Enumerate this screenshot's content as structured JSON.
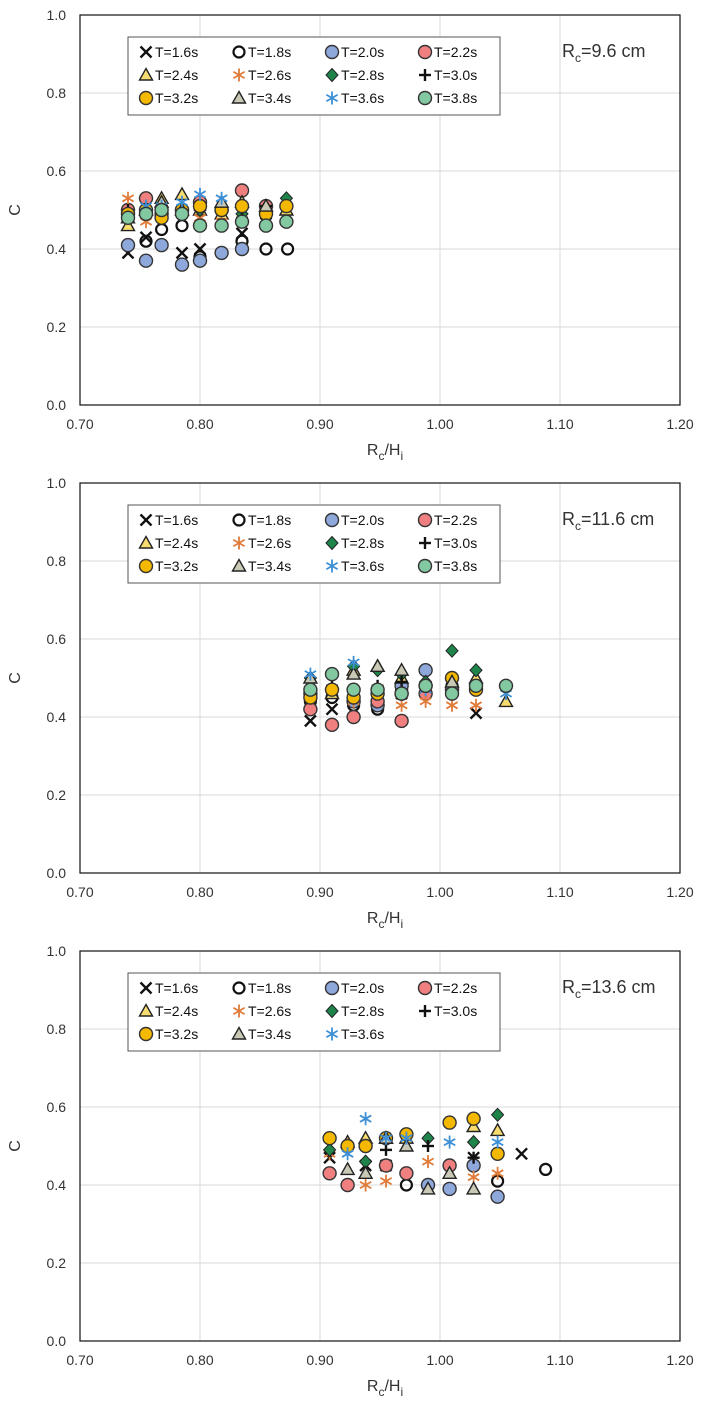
{
  "chart_data": [
    {
      "type": "scatter",
      "annotation": {
        "main": "R",
        "sub": "c",
        "rest": "=9.6 cm"
      },
      "xlabel": {
        "main": "R",
        "sub": "c",
        "rest": "/H",
        "sub2": "i"
      },
      "ylabel": "C",
      "xlim": [
        0.7,
        1.2
      ],
      "ylim": [
        0.0,
        1.0
      ],
      "xticks": [
        "0.70",
        "0.80",
        "0.90",
        "1.00",
        "1.10",
        "1.20"
      ],
      "yticks": [
        "0.0",
        "0.2",
        "0.4",
        "0.6",
        "0.8",
        "1.0"
      ],
      "grid": true,
      "legend_position": "top-left",
      "series": [
        {
          "name": "T=1.6s",
          "marker": "x",
          "x": [
            0.74,
            0.755,
            0.785,
            0.8,
            0.835,
            0.855,
            0.872
          ],
          "y": [
            0.39,
            0.43,
            0.39,
            0.4,
            0.44,
            0.49,
            0.48
          ]
        },
        {
          "name": "T=1.8s",
          "marker": "open-circle",
          "x": [
            0.74,
            0.755,
            0.768,
            0.785,
            0.8,
            0.835,
            0.855,
            0.873
          ],
          "y": [
            0.41,
            0.42,
            0.45,
            0.46,
            0.38,
            0.42,
            0.4,
            0.4
          ]
        },
        {
          "name": "T=2.0s",
          "marker": "circle",
          "color": "#8fa8dc",
          "x": [
            0.74,
            0.755,
            0.768,
            0.785,
            0.8,
            0.818,
            0.835
          ],
          "y": [
            0.41,
            0.37,
            0.41,
            0.36,
            0.37,
            0.39,
            0.4
          ]
        },
        {
          "name": "T=2.2s",
          "marker": "circle",
          "color": "#f08080",
          "x": [
            0.74,
            0.755,
            0.768,
            0.785,
            0.8,
            0.818,
            0.835,
            0.855
          ],
          "y": [
            0.5,
            0.53,
            0.49,
            0.5,
            0.52,
            0.5,
            0.55,
            0.51
          ]
        },
        {
          "name": "T=2.4s",
          "marker": "triangle",
          "color": "#f7dc6f",
          "x": [
            0.74,
            0.768,
            0.785,
            0.8,
            0.818,
            0.835,
            0.872
          ],
          "y": [
            0.46,
            0.53,
            0.54,
            0.5,
            0.49,
            0.52,
            0.5
          ]
        },
        {
          "name": "T=2.6s",
          "marker": "asterisk",
          "color": "#e07b39",
          "x": [
            0.74,
            0.755,
            0.8,
            0.818,
            0.835,
            0.855
          ],
          "y": [
            0.53,
            0.47,
            0.48,
            0.47,
            0.51,
            0.49
          ]
        },
        {
          "name": "T=2.8s",
          "marker": "diamond",
          "color": "#1e8449",
          "x": [
            0.74,
            0.768,
            0.8,
            0.835,
            0.872
          ],
          "y": [
            0.48,
            0.5,
            0.5,
            0.49,
            0.53
          ]
        },
        {
          "name": "T=3.0s",
          "marker": "plus",
          "x": [
            0.74,
            0.768,
            0.8,
            0.835,
            0.855
          ],
          "y": [
            0.5,
            0.51,
            0.51,
            0.48,
            0.51
          ]
        },
        {
          "name": "T=3.2s",
          "marker": "circle",
          "color": "#f5b800",
          "x": [
            0.74,
            0.755,
            0.768,
            0.785,
            0.8,
            0.818,
            0.835,
            0.855,
            0.872
          ],
          "y": [
            0.49,
            0.5,
            0.48,
            0.5,
            0.51,
            0.5,
            0.51,
            0.49,
            0.51
          ]
        },
        {
          "name": "T=3.4s",
          "marker": "triangle",
          "color": "#c9c9b6",
          "x": [
            0.74,
            0.755,
            0.768,
            0.785,
            0.818,
            0.855
          ],
          "y": [
            0.48,
            0.5,
            0.52,
            0.5,
            0.52,
            0.51
          ]
        },
        {
          "name": "T=3.6s",
          "marker": "asterisk",
          "color": "#3d8fd6",
          "x": [
            0.755,
            0.768,
            0.785,
            0.8,
            0.818,
            0.855
          ],
          "y": [
            0.51,
            0.51,
            0.52,
            0.54,
            0.53,
            0.46
          ]
        },
        {
          "name": "T=3.8s",
          "marker": "circle",
          "color": "#82c8a0",
          "x": [
            0.74,
            0.755,
            0.768,
            0.785,
            0.8,
            0.818,
            0.835,
            0.855,
            0.872
          ],
          "y": [
            0.48,
            0.49,
            0.5,
            0.49,
            0.46,
            0.46,
            0.47,
            0.46,
            0.47
          ]
        }
      ]
    },
    {
      "type": "scatter",
      "annotation": {
        "main": "R",
        "sub": "c",
        "rest": "=11.6 cm"
      },
      "xlabel": {
        "main": "R",
        "sub": "c",
        "rest": "/H",
        "sub2": "i"
      },
      "ylabel": "C",
      "xlim": [
        0.7,
        1.2
      ],
      "ylim": [
        0.0,
        1.0
      ],
      "xticks": [
        "0.70",
        "0.80",
        "0.90",
        "1.00",
        "1.10",
        "1.20"
      ],
      "yticks": [
        "0.0",
        "0.2",
        "0.4",
        "0.6",
        "0.8",
        "1.0"
      ],
      "grid": true,
      "legend_position": "top-left",
      "series": [
        {
          "name": "T=1.6s",
          "marker": "x",
          "x": [
            0.892,
            0.91,
            0.948,
            0.968,
            1.03
          ],
          "y": [
            0.39,
            0.42,
            0.44,
            0.46,
            0.41
          ]
        },
        {
          "name": "T=1.8s",
          "marker": "open-circle",
          "x": [
            0.892,
            0.91,
            0.928,
            0.948,
            0.968,
            0.988,
            1.01
          ],
          "y": [
            0.44,
            0.45,
            0.43,
            0.42,
            0.47,
            0.46,
            0.48
          ]
        },
        {
          "name": "T=2.0s",
          "marker": "circle",
          "color": "#8fa8dc",
          "x": [
            0.892,
            0.928,
            0.948,
            0.968,
            0.988,
            1.01
          ],
          "y": [
            0.46,
            0.44,
            0.43,
            0.48,
            0.52,
            0.47
          ]
        },
        {
          "name": "T=2.2s",
          "marker": "circle",
          "color": "#f08080",
          "x": [
            0.892,
            0.91,
            0.928,
            0.948,
            0.968,
            0.988
          ],
          "y": [
            0.42,
            0.38,
            0.4,
            0.44,
            0.39,
            0.46
          ]
        },
        {
          "name": "T=2.4s",
          "marker": "triangle",
          "color": "#f7dc6f",
          "x": [
            0.91,
            0.928,
            0.948,
            0.968,
            1.03,
            1.055
          ],
          "y": [
            0.46,
            0.52,
            0.53,
            0.5,
            0.5,
            0.44
          ]
        },
        {
          "name": "T=2.6s",
          "marker": "asterisk",
          "color": "#e07b39",
          "x": [
            0.892,
            0.928,
            0.948,
            0.968,
            0.988,
            1.01,
            1.03
          ],
          "y": [
            0.47,
            0.44,
            0.47,
            0.43,
            0.44,
            0.43,
            0.43
          ]
        },
        {
          "name": "T=2.8s",
          "marker": "diamond",
          "color": "#1e8449",
          "x": [
            0.892,
            0.91,
            0.928,
            0.948,
            0.968,
            0.988,
            1.01,
            1.03
          ],
          "y": [
            0.5,
            0.51,
            0.53,
            0.52,
            0.51,
            0.49,
            0.57,
            0.52
          ]
        },
        {
          "name": "T=3.0s",
          "marker": "plus",
          "x": [
            0.91,
            0.948,
            0.968,
            1.01,
            1.03
          ],
          "y": [
            0.48,
            0.48,
            0.49,
            0.47,
            0.47
          ]
        },
        {
          "name": "T=3.2s",
          "marker": "circle",
          "color": "#f5b800",
          "x": [
            0.892,
            0.91,
            0.928,
            0.948,
            0.968,
            0.988,
            1.01,
            1.03
          ],
          "y": [
            0.45,
            0.47,
            0.45,
            0.46,
            0.46,
            0.48,
            0.5,
            0.47
          ]
        },
        {
          "name": "T=3.4s",
          "marker": "triangle",
          "color": "#c9c9b6",
          "x": [
            0.892,
            0.928,
            0.948,
            0.968,
            1.01
          ],
          "y": [
            0.5,
            0.51,
            0.53,
            0.52,
            0.49
          ]
        },
        {
          "name": "T=3.6s",
          "marker": "asterisk",
          "color": "#3d8fd6",
          "x": [
            0.892,
            0.928,
            0.948,
            0.988,
            1.01,
            1.055
          ],
          "y": [
            0.51,
            0.54,
            0.47,
            0.47,
            0.46,
            0.46
          ]
        },
        {
          "name": "T=3.8s",
          "marker": "circle",
          "color": "#82c8a0",
          "x": [
            0.892,
            0.91,
            0.928,
            0.948,
            0.968,
            0.988,
            1.01,
            1.03,
            1.055
          ],
          "y": [
            0.47,
            0.51,
            0.47,
            0.47,
            0.46,
            0.48,
            0.46,
            0.48,
            0.48
          ]
        }
      ]
    },
    {
      "type": "scatter",
      "annotation": {
        "main": "R",
        "sub": "c",
        "rest": "=13.6 cm"
      },
      "xlabel": {
        "main": "R",
        "sub": "c",
        "rest": "/H",
        "sub2": "i"
      },
      "ylabel": "C",
      "xlim": [
        0.7,
        1.2
      ],
      "ylim": [
        0.0,
        1.0
      ],
      "xticks": [
        "0.70",
        "0.80",
        "0.90",
        "1.00",
        "1.10",
        "1.20"
      ],
      "yticks": [
        "0.0",
        "0.2",
        "0.4",
        "0.6",
        "0.8",
        "1.0"
      ],
      "grid": true,
      "legend_position": "top-left",
      "series": [
        {
          "name": "T=1.6s",
          "marker": "x",
          "x": [
            0.908,
            0.938,
            0.955,
            1.028,
            1.068
          ],
          "y": [
            0.47,
            0.45,
            0.45,
            0.47,
            0.48
          ]
        },
        {
          "name": "T=1.8s",
          "marker": "open-circle",
          "x": [
            0.908,
            0.923,
            0.972,
            0.99,
            1.048,
            1.088
          ],
          "y": [
            0.43,
            0.4,
            0.4,
            0.4,
            0.41,
            0.44
          ]
        },
        {
          "name": "T=2.0s",
          "marker": "circle",
          "color": "#8fa8dc",
          "x": [
            0.99,
            1.008,
            1.028,
            1.048
          ],
          "y": [
            0.4,
            0.39,
            0.45,
            0.37
          ]
        },
        {
          "name": "T=2.2s",
          "marker": "circle",
          "color": "#f08080",
          "x": [
            0.908,
            0.923,
            0.955,
            0.972,
            1.008
          ],
          "y": [
            0.43,
            0.4,
            0.45,
            0.43,
            0.45
          ]
        },
        {
          "name": "T=2.4s",
          "marker": "triangle",
          "color": "#f7dc6f",
          "x": [
            0.923,
            0.938,
            0.955,
            0.972,
            1.028,
            1.048
          ],
          "y": [
            0.51,
            0.52,
            0.52,
            0.52,
            0.55,
            0.54
          ]
        },
        {
          "name": "T=2.6s",
          "marker": "asterisk",
          "color": "#e07b39",
          "x": [
            0.908,
            0.938,
            0.955,
            0.99,
            1.028,
            1.048
          ],
          "y": [
            0.48,
            0.4,
            0.41,
            0.46,
            0.42,
            0.43
          ]
        },
        {
          "name": "T=2.8s",
          "marker": "diamond",
          "color": "#1e8449",
          "x": [
            0.908,
            0.938,
            0.955,
            0.99,
            1.028,
            1.048
          ],
          "y": [
            0.49,
            0.46,
            0.52,
            0.52,
            0.51,
            0.58
          ]
        },
        {
          "name": "T=3.0s",
          "marker": "plus",
          "x": [
            0.923,
            0.955,
            0.99,
            1.028
          ],
          "y": [
            0.5,
            0.49,
            0.5,
            0.47
          ]
        },
        {
          "name": "T=3.2s",
          "marker": "circle",
          "color": "#f5b800",
          "x": [
            0.908,
            0.923,
            0.938,
            0.955,
            0.972,
            1.008,
            1.028,
            1.048
          ],
          "y": [
            0.52,
            0.5,
            0.5,
            0.52,
            0.53,
            0.56,
            0.57,
            0.48
          ]
        },
        {
          "name": "T=3.4s",
          "marker": "triangle",
          "color": "#c9c9b6",
          "x": [
            0.923,
            0.938,
            0.955,
            0.972,
            0.99,
            1.008,
            1.028
          ],
          "y": [
            0.44,
            0.43,
            0.52,
            0.5,
            0.39,
            0.43,
            0.39
          ]
        },
        {
          "name": "T=3.6s",
          "marker": "asterisk",
          "color": "#3d8fd6",
          "x": [
            0.923,
            0.938,
            0.955,
            0.972,
            1.008,
            1.048
          ],
          "y": [
            0.48,
            0.57,
            0.52,
            0.52,
            0.51,
            0.51
          ]
        }
      ]
    }
  ]
}
